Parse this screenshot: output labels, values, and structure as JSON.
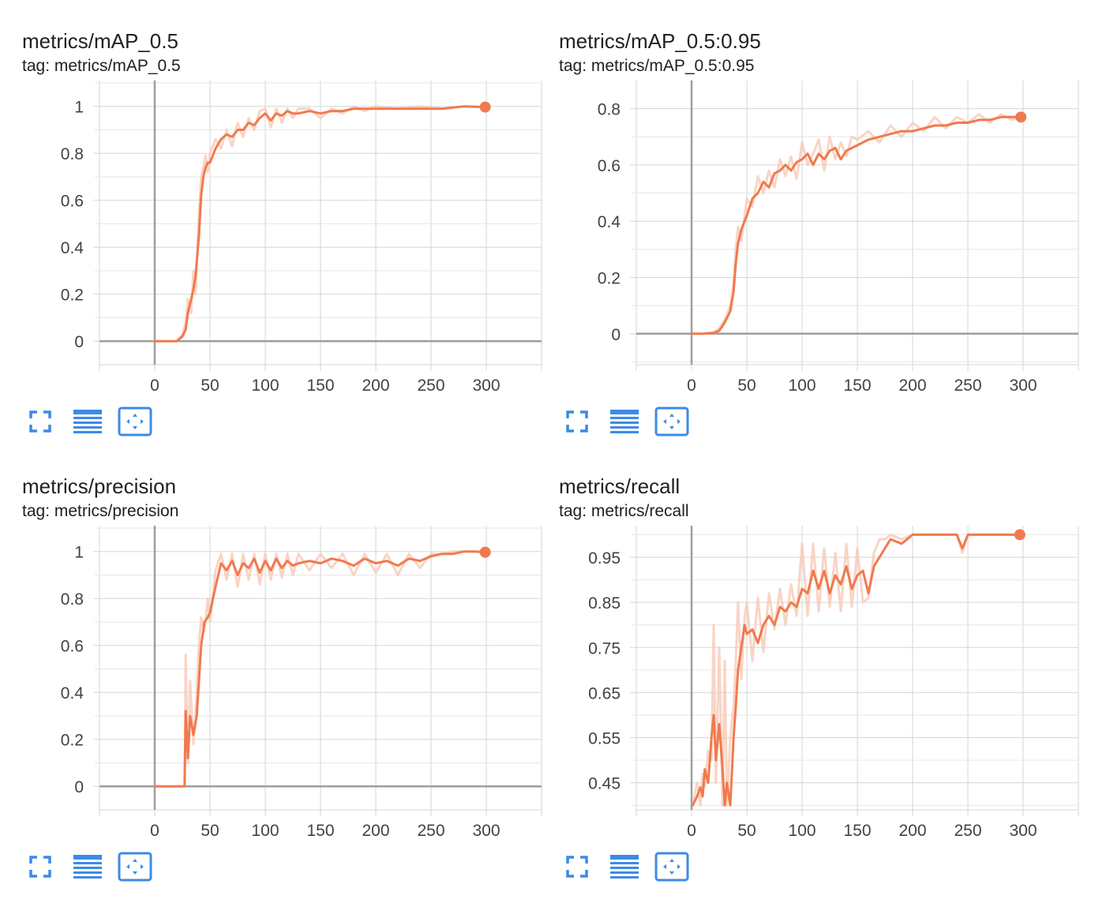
{
  "colors": {
    "series": "#f07a4e",
    "series_raw": "#f8c9b6",
    "grid": "#d6d6d6",
    "axis": "#9e9e9e",
    "icon": "#3d8ae6"
  },
  "toolbar_icons": [
    "fullscreen-icon",
    "toggle-log-scale-icon",
    "fit-domain-icon"
  ],
  "charts": [
    {
      "title": "metrics/mAP_0.5",
      "tag": "tag: metrics/mAP_0.5",
      "chart_data": {
        "type": "line",
        "title": "metrics/mAP_0.5",
        "xlabel": "",
        "ylabel": "",
        "xlim": [
          -50,
          350
        ],
        "ylim": [
          -0.1,
          1.11
        ],
        "xticks": [
          0,
          50,
          100,
          150,
          200,
          250,
          300
        ],
        "yticks": [
          0,
          0.2,
          0.4,
          0.6,
          0.8,
          1
        ],
        "ytick_labels": [
          "0",
          "0.2",
          "0.4",
          "0.6",
          "0.8",
          "1"
        ],
        "grid": true,
        "series": [
          {
            "x": [
              0,
              10,
              20,
              25,
              28,
              30,
              33,
              35,
              37,
              40,
              42,
              44,
              46,
              48,
              50,
              55,
              60,
              65,
              70,
              75,
              80,
              85,
              90,
              95,
              100,
              105,
              110,
              115,
              120,
              125,
              130,
              140,
              150,
              160,
              170,
              180,
              190,
              200,
              220,
              240,
              260,
              280,
              299
            ],
            "y": [
              0,
              0,
              0,
              0.02,
              0.05,
              0.12,
              0.18,
              0.22,
              0.28,
              0.45,
              0.62,
              0.7,
              0.74,
              0.76,
              0.76,
              0.82,
              0.86,
              0.88,
              0.87,
              0.9,
              0.9,
              0.93,
              0.92,
              0.95,
              0.97,
              0.94,
              0.97,
              0.96,
              0.98,
              0.97,
              0.97,
              0.98,
              0.97,
              0.98,
              0.98,
              0.99,
              0.99,
              0.99,
              0.99,
              0.99,
              0.99,
              1.0,
              0.997
            ],
            "raw": [
              0,
              0,
              0,
              0.03,
              0.08,
              0.18,
              0.12,
              0.3,
              0.2,
              0.55,
              0.7,
              0.74,
              0.79,
              0.72,
              0.8,
              0.86,
              0.82,
              0.9,
              0.83,
              0.93,
              0.87,
              0.95,
              0.9,
              0.98,
              0.99,
              0.91,
              0.99,
              0.93,
              0.99,
              0.95,
              0.99,
              0.99,
              0.95,
              0.99,
              0.97,
              1.0,
              0.98,
              1.0,
              0.99,
              1.0,
              0.99,
              1.0,
              0.997
            ]
          }
        ]
      }
    },
    {
      "title": "metrics/mAP_0.5:0.95",
      "tag": "tag: metrics/mAP_0.5:0.95",
      "chart_data": {
        "type": "line",
        "title": "metrics/mAP_0.5:0.95",
        "xlabel": "",
        "ylabel": "",
        "xlim": [
          -50,
          350
        ],
        "ylim": [
          -0.11,
          0.9
        ],
        "xticks": [
          0,
          50,
          100,
          150,
          200,
          250,
          300
        ],
        "yticks": [
          0,
          0.2,
          0.4,
          0.6,
          0.8
        ],
        "ytick_labels": [
          "0",
          "0.2",
          "0.4",
          "0.6",
          "0.8"
        ],
        "grid": true,
        "series": [
          {
            "x": [
              0,
              10,
              20,
              25,
              30,
              35,
              38,
              40,
              42,
              45,
              50,
              55,
              60,
              65,
              70,
              75,
              80,
              85,
              90,
              95,
              100,
              105,
              110,
              115,
              120,
              125,
              130,
              135,
              140,
              145,
              150,
              160,
              170,
              180,
              190,
              200,
              210,
              220,
              230,
              240,
              250,
              260,
              270,
              280,
              290,
              298
            ],
            "y": [
              0,
              0,
              0.003,
              0.01,
              0.04,
              0.08,
              0.15,
              0.25,
              0.32,
              0.37,
              0.42,
              0.48,
              0.5,
              0.54,
              0.52,
              0.57,
              0.58,
              0.6,
              0.58,
              0.61,
              0.62,
              0.64,
              0.6,
              0.64,
              0.62,
              0.65,
              0.66,
              0.62,
              0.65,
              0.66,
              0.67,
              0.69,
              0.7,
              0.71,
              0.72,
              0.72,
              0.73,
              0.74,
              0.74,
              0.75,
              0.75,
              0.76,
              0.76,
              0.77,
              0.77,
              0.77
            ],
            "raw": [
              0,
              0,
              0.005,
              0.02,
              0.05,
              0.1,
              0.18,
              0.3,
              0.38,
              0.33,
              0.48,
              0.45,
              0.56,
              0.5,
              0.58,
              0.52,
              0.62,
              0.56,
              0.63,
              0.55,
              0.68,
              0.6,
              0.64,
              0.69,
              0.58,
              0.7,
              0.62,
              0.68,
              0.63,
              0.7,
              0.69,
              0.72,
              0.68,
              0.74,
              0.7,
              0.75,
              0.72,
              0.77,
              0.73,
              0.77,
              0.75,
              0.78,
              0.75,
              0.78,
              0.76,
              0.77
            ]
          }
        ]
      }
    },
    {
      "title": "metrics/precision",
      "tag": "tag: metrics/precision",
      "chart_data": {
        "type": "line",
        "title": "metrics/precision",
        "xlabel": "",
        "ylabel": "",
        "xlim": [
          -50,
          350
        ],
        "ylim": [
          -0.1,
          1.11
        ],
        "xticks": [
          0,
          50,
          100,
          150,
          200,
          250,
          300
        ],
        "yticks": [
          0,
          0.2,
          0.4,
          0.6,
          0.8,
          1
        ],
        "ytick_labels": [
          "0",
          "0.2",
          "0.4",
          "0.6",
          "0.8",
          "1"
        ],
        "grid": true,
        "series": [
          {
            "x": [
              0,
              10,
              20,
              27,
              28,
              30,
              32,
              35,
              38,
              40,
              42,
              45,
              48,
              50,
              55,
              60,
              65,
              70,
              75,
              80,
              85,
              90,
              95,
              100,
              105,
              110,
              115,
              120,
              125,
              130,
              140,
              150,
              160,
              170,
              180,
              190,
              200,
              210,
              220,
              230,
              240,
              250,
              260,
              270,
              280,
              290,
              299
            ],
            "y": [
              0,
              0,
              0,
              0,
              0.32,
              0.12,
              0.3,
              0.22,
              0.3,
              0.45,
              0.6,
              0.7,
              0.72,
              0.74,
              0.85,
              0.95,
              0.92,
              0.96,
              0.9,
              0.95,
              0.93,
              0.97,
              0.91,
              0.96,
              0.92,
              0.97,
              0.93,
              0.96,
              0.94,
              0.95,
              0.96,
              0.95,
              0.97,
              0.96,
              0.94,
              0.97,
              0.95,
              0.96,
              0.94,
              0.97,
              0.96,
              0.98,
              0.99,
              0.99,
              1.0,
              1.0,
              0.997
            ],
            "raw": [
              0,
              0,
              0,
              0,
              0.56,
              0.1,
              0.45,
              0.18,
              0.4,
              0.6,
              0.72,
              0.66,
              0.8,
              0.7,
              0.92,
              0.99,
              0.88,
              0.99,
              0.85,
              0.99,
              0.88,
              0.99,
              0.86,
              0.99,
              0.88,
              0.99,
              0.89,
              0.99,
              0.9,
              0.99,
              0.92,
              0.99,
              0.93,
              0.99,
              0.9,
              0.99,
              0.91,
              0.99,
              0.9,
              0.99,
              0.93,
              0.99,
              0.99,
              1.0,
              1.0,
              1.0,
              0.997
            ]
          }
        ]
      }
    },
    {
      "title": "metrics/recall",
      "tag": "tag: metrics/recall",
      "chart_data": {
        "type": "line",
        "title": "metrics/recall",
        "xlabel": "",
        "ylabel": "",
        "xlim": [
          -50,
          350
        ],
        "ylim": [
          0.39,
          1.02
        ],
        "xticks": [
          0,
          50,
          100,
          150,
          200,
          250,
          300
        ],
        "yticks": [
          0.45,
          0.55,
          0.65,
          0.75,
          0.85,
          0.95
        ],
        "ytick_labels": [
          "0.45",
          "0.55",
          "0.65",
          "0.75",
          "0.85",
          "0.95"
        ],
        "grid": true,
        "series": [
          {
            "x": [
              1,
              5,
              8,
              10,
              12,
              15,
              18,
              20,
              22,
              25,
              28,
              30,
              32,
              35,
              38,
              40,
              42,
              45,
              48,
              50,
              55,
              60,
              65,
              70,
              75,
              80,
              85,
              90,
              95,
              100,
              105,
              110,
              115,
              120,
              125,
              130,
              135,
              140,
              145,
              150,
              155,
              160,
              165,
              170,
              175,
              180,
              190,
              200,
              210,
              220,
              230,
              240,
              245,
              250,
              260,
              270,
              280,
              290,
              297
            ],
            "y": [
              0.4,
              0.42,
              0.44,
              0.42,
              0.48,
              0.45,
              0.55,
              0.6,
              0.5,
              0.58,
              0.48,
              0.4,
              0.45,
              0.4,
              0.55,
              0.62,
              0.7,
              0.75,
              0.8,
              0.78,
              0.79,
              0.76,
              0.8,
              0.82,
              0.8,
              0.84,
              0.83,
              0.85,
              0.84,
              0.88,
              0.87,
              0.92,
              0.88,
              0.92,
              0.87,
              0.91,
              0.89,
              0.93,
              0.88,
              0.91,
              0.92,
              0.87,
              0.93,
              0.95,
              0.97,
              0.99,
              0.98,
              1.0,
              1.0,
              1.0,
              1.0,
              1.0,
              0.97,
              1.0,
              1.0,
              1.0,
              1.0,
              1.0,
              1.0
            ],
            "raw": [
              0.4,
              0.45,
              0.4,
              0.47,
              0.44,
              0.52,
              0.5,
              0.8,
              0.45,
              0.75,
              0.4,
              0.72,
              0.4,
              0.55,
              0.62,
              0.72,
              0.85,
              0.68,
              0.82,
              0.85,
              0.72,
              0.86,
              0.74,
              0.87,
              0.79,
              0.88,
              0.8,
              0.89,
              0.82,
              0.98,
              0.82,
              0.98,
              0.83,
              0.97,
              0.84,
              0.96,
              0.83,
              0.98,
              0.84,
              0.97,
              0.85,
              0.86,
              0.96,
              0.99,
              0.99,
              1.0,
              0.99,
              1.0,
              1.0,
              1.0,
              1.0,
              1.0,
              0.96,
              1.0,
              1.0,
              1.0,
              1.0,
              1.0,
              1.0
            ]
          }
        ]
      }
    }
  ]
}
